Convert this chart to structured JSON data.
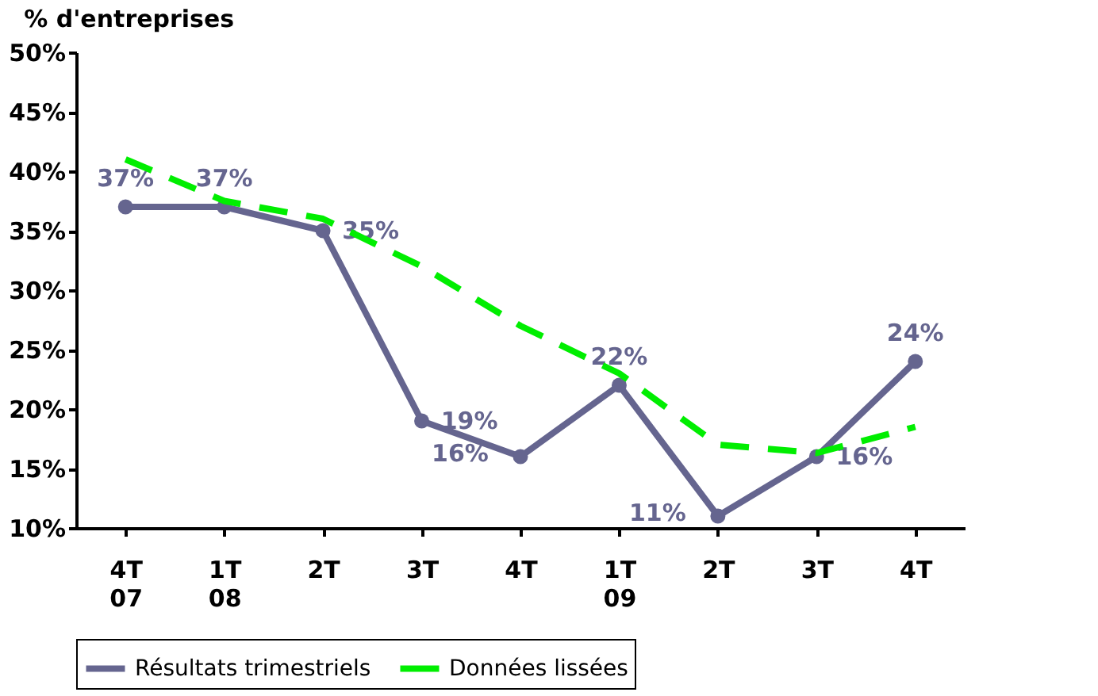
{
  "chart_data": {
    "type": "line",
    "ylabel": "% d'entreprises",
    "categories": [
      "4T\n07",
      "1T\n08",
      "2T",
      "3T",
      "4T",
      "1T\n09",
      "2T",
      "3T",
      "4T"
    ],
    "series": [
      {
        "name": "Résultats trimestriels",
        "color": "#65658f",
        "values": [
          37,
          37,
          35,
          19,
          16,
          22,
          11,
          16,
          24
        ],
        "value_labels": [
          "37%",
          "37%",
          "35%",
          "19%",
          "16%",
          "22%",
          "11%",
          "16%",
          "24%"
        ],
        "marker": "circle",
        "line_style": "solid"
      },
      {
        "name": "Données lissées",
        "color": "#00ee00",
        "values": [
          41,
          37.5,
          36,
          32,
          27,
          23,
          17,
          16.3,
          18.5
        ],
        "marker": "none",
        "line_style": "dashed"
      }
    ],
    "ylim": [
      10,
      50
    ],
    "yticks": [
      {
        "value": 10,
        "label": "10%"
      },
      {
        "value": 15,
        "label": "15%"
      },
      {
        "value": 20,
        "label": "20%"
      },
      {
        "value": 25,
        "label": "25%"
      },
      {
        "value": 30,
        "label": "30%"
      },
      {
        "value": 35,
        "label": "35%"
      },
      {
        "value": 40,
        "label": "40%"
      },
      {
        "value": 45,
        "label": "45%"
      },
      {
        "value": 50,
        "label": "50%"
      }
    ],
    "grid": false,
    "legend": "bottom"
  }
}
